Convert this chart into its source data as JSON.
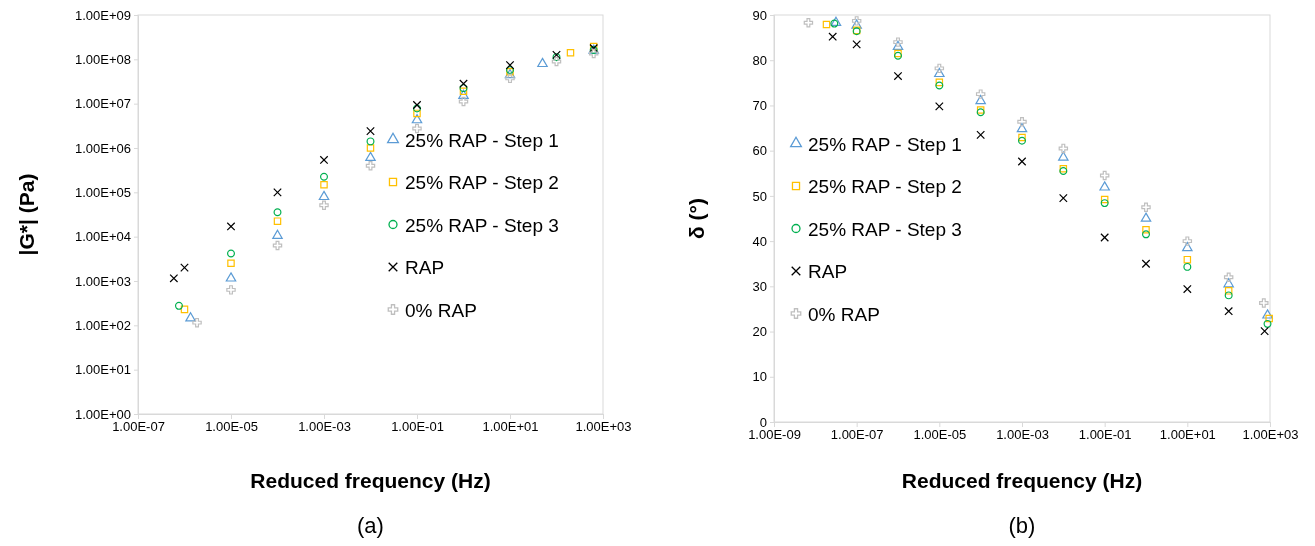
{
  "chart_data": [
    {
      "type": "scatter",
      "xlabel": "Reduced frequency (Hz)",
      "ylabel": "|G*| (Pa)",
      "annotations": [
        "(a)"
      ],
      "log": "xy",
      "legend": "right",
      "grid": false,
      "xlim": [
        1e-07,
        1000
      ],
      "xticks": [
        {
          "value": 1e-07,
          "label": "1.00E-07"
        },
        {
          "value": 1e-05,
          "label": "1.00E-05"
        },
        {
          "value": 0.001,
          "label": "1.00E-03"
        },
        {
          "value": 0.1,
          "label": "1.00E-01"
        },
        {
          "value": 10,
          "label": "1.00E+01"
        },
        {
          "value": 1000,
          "label": "1.00E+03"
        }
      ],
      "ylim": [
        1,
        1000000000.0
      ],
      "yticks": [
        {
          "value": 1,
          "label": "1.00E+00"
        },
        {
          "value": 10,
          "label": "1.00E+01"
        },
        {
          "value": 100,
          "label": "1.00E+02"
        },
        {
          "value": 1000,
          "label": "1.00E+03"
        },
        {
          "value": 10000,
          "label": "1.00E+04"
        },
        {
          "value": 100000,
          "label": "1.00E+05"
        },
        {
          "value": 1000000,
          "label": "1.00E+06"
        },
        {
          "value": 10000000,
          "label": "1.00E+07"
        },
        {
          "value": 100000000,
          "label": "1.00E+08"
        },
        {
          "value": 1000000000,
          "label": "1.00E+09"
        }
      ],
      "series": [
        {
          "name": "25% RAP - Step 1",
          "color": "#5b9bd5",
          "marker": "triangle",
          "x": [
            1.35e-06,
            1e-05,
            0.0001,
            0.001,
            0.01,
            0.1,
            1,
            10,
            50,
            631
          ],
          "values": [
            145,
            1150,
            10500,
            79400,
            603000,
            4270000,
            15100000,
            44700000,
            79400000,
            158000000
          ]
        },
        {
          "name": "25% RAP - Step 2",
          "color": "#ffc000",
          "marker": "square",
          "x": [
            1e-06,
            1e-05,
            0.0001,
            0.001,
            0.01,
            0.1,
            1,
            10,
            200,
            631
          ],
          "values": [
            229,
            2510,
            22400,
            148000,
            1000000,
            6030000,
            19100000,
            52500000,
            141000000,
            195000000
          ]
        },
        {
          "name": "25% RAP - Step 3",
          "color": "#00b050",
          "marker": "circle",
          "x": [
            7.6e-07,
            1e-05,
            0.0001,
            0.001,
            0.01,
            0.1,
            1,
            10,
            100,
            631
          ],
          "values": [
            275,
            4170,
            35500,
            224000,
            1410000,
            7760000,
            22400000,
            57500000,
            112000000,
            162000000
          ]
        },
        {
          "name": "RAP",
          "color": "#000000",
          "marker": "x",
          "x": [
            5.9e-07,
            1e-06,
            1e-05,
            0.0001,
            0.001,
            0.01,
            0.1,
            1,
            10,
            100,
            631
          ],
          "values": [
            1150,
            2000,
            17000,
            100000,
            537000,
            2400000,
            9330000,
            28200000,
            74100000,
            126000000,
            178000000
          ]
        },
        {
          "name": "0% RAP",
          "color": "#bfbfbf",
          "marker": "cross",
          "x": [
            1.86e-06,
            1e-05,
            0.0001,
            0.001,
            0.01,
            0.1,
            1,
            10,
            100,
            631
          ],
          "values": [
            115,
            631,
            6310,
            51300,
            398000,
            2750000,
            11200000,
            37200000,
            89100000,
            135000000
          ]
        }
      ]
    },
    {
      "type": "scatter",
      "xlabel": "Reduced frequency (Hz)",
      "ylabel": "δ (°)",
      "annotations": [
        "(b)"
      ],
      "log": "x",
      "legend": "left",
      "grid": false,
      "xlim": [
        1e-09,
        1000
      ],
      "xticks": [
        {
          "value": 1e-09,
          "label": "1.00E-09"
        },
        {
          "value": 1e-07,
          "label": "1.00E-07"
        },
        {
          "value": 1e-05,
          "label": "1.00E-05"
        },
        {
          "value": 0.001,
          "label": "1.00E-03"
        },
        {
          "value": 0.1,
          "label": "1.00E-01"
        },
        {
          "value": 10,
          "label": "1.00E+01"
        },
        {
          "value": 1000,
          "label": "1.00E+03"
        }
      ],
      "ylim": [
        0,
        90
      ],
      "yticks": [
        0,
        10,
        20,
        30,
        40,
        50,
        60,
        70,
        80,
        90
      ],
      "series": [
        {
          "name": "25% RAP - Step 1",
          "color": "#5b9bd5",
          "marker": "triangle",
          "x": [
            3.16e-08,
            1e-07,
            1e-06,
            1e-05,
            0.0001,
            0.001,
            0.01,
            0.1,
            1,
            10,
            100,
            871
          ],
          "values": [
            88.3,
            87.7,
            83,
            77,
            71,
            64.8,
            58.5,
            51.9,
            45,
            38.5,
            30.5,
            23.6
          ]
        },
        {
          "name": "25% RAP - Step 2",
          "color": "#ffc000",
          "marker": "square",
          "x": [
            1.86e-08,
            1e-07,
            1e-06,
            1e-05,
            0.0001,
            0.001,
            0.01,
            0.1,
            1,
            10,
            100,
            955
          ],
          "values": [
            87.9,
            86.6,
            81.5,
            75.1,
            69,
            62.9,
            56,
            49.2,
            42.5,
            35.9,
            29,
            22.9
          ]
        },
        {
          "name": "25% RAP - Step 3",
          "color": "#00b050",
          "marker": "circle",
          "x": [
            2.88e-08,
            1e-07,
            1e-06,
            1e-05,
            0.0001,
            0.001,
            0.01,
            0.1,
            1,
            10,
            100,
            871
          ],
          "values": [
            88.1,
            86.4,
            81,
            74.4,
            68.5,
            62.2,
            55.5,
            48.4,
            41.5,
            34.3,
            28,
            21.7
          ]
        },
        {
          "name": "RAP",
          "color": "#000000",
          "marker": "x",
          "x": [
            2.63e-08,
            1e-07,
            1e-06,
            1e-05,
            0.0001,
            0.001,
            0.01,
            0.1,
            1,
            10,
            100,
            741
          ],
          "values": [
            85.2,
            83.5,
            76.5,
            69.8,
            63.5,
            57.6,
            49.5,
            40.8,
            35,
            29.4,
            24.5,
            20.1
          ]
        },
        {
          "name": "0% RAP",
          "color": "#bfbfbf",
          "marker": "cross",
          "x": [
            6.8e-09,
            1e-07,
            1e-06,
            1e-05,
            0.0001,
            0.001,
            0.01,
            0.1,
            1,
            10,
            100,
            708
          ],
          "values": [
            88.3,
            88.7,
            84,
            78.2,
            72.5,
            66.4,
            60.5,
            54.5,
            47.5,
            40,
            32,
            26.3
          ]
        }
      ]
    }
  ]
}
